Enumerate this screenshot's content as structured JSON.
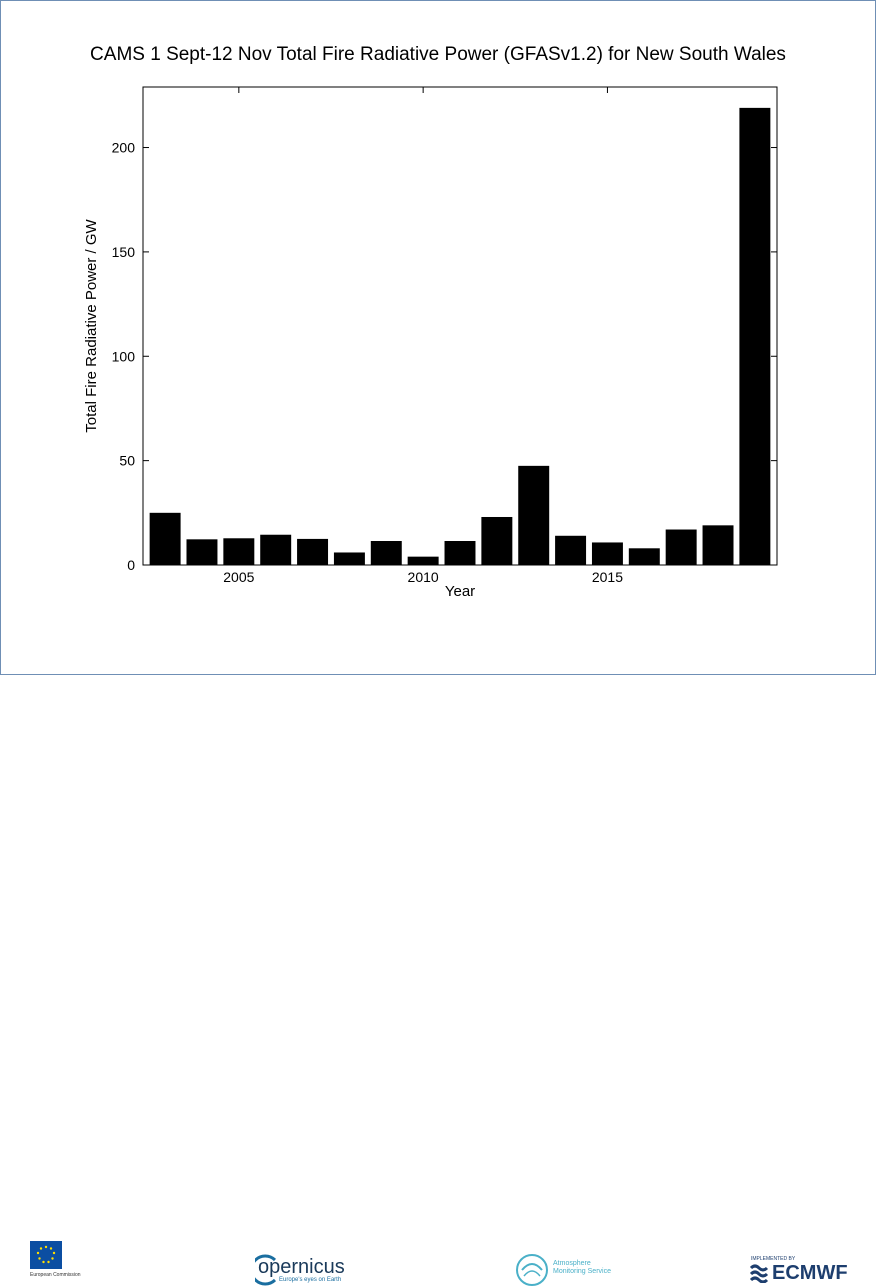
{
  "chart_data": {
    "type": "bar",
    "title": "CAMS 1 Sept-12 Nov Total Fire Radiative Power (GFASv1.2) for New South Wales",
    "xlabel": "Year",
    "ylabel": "Total Fire Radiative Power / GW",
    "categories": [
      2003,
      2004,
      2005,
      2006,
      2007,
      2008,
      2009,
      2010,
      2011,
      2012,
      2013,
      2014,
      2015,
      2016,
      2017,
      2018,
      2019
    ],
    "values": [
      25,
      12.3,
      12.8,
      14.5,
      12.5,
      6,
      11.5,
      4,
      11.5,
      23,
      47.5,
      14,
      10.8,
      8,
      17,
      19,
      219
    ],
    "xticks": [
      2005,
      2010,
      2015
    ],
    "yticks": [
      0,
      50,
      100,
      150,
      200
    ],
    "xlim": [
      2002.4,
      2019.6
    ],
    "ylim": [
      0,
      229
    ],
    "grid": false,
    "bar_color": "#000000"
  },
  "footer": {
    "ec_label": "European Commission",
    "copernicus_word": "opernicus",
    "copernicus_tagline": "Europe's eyes on Earth",
    "ams_label": "Atmosphere Monitoring Service",
    "ecmwf_small": "IMPLEMENTED BY",
    "ecmwf_word": "ECMWF"
  }
}
